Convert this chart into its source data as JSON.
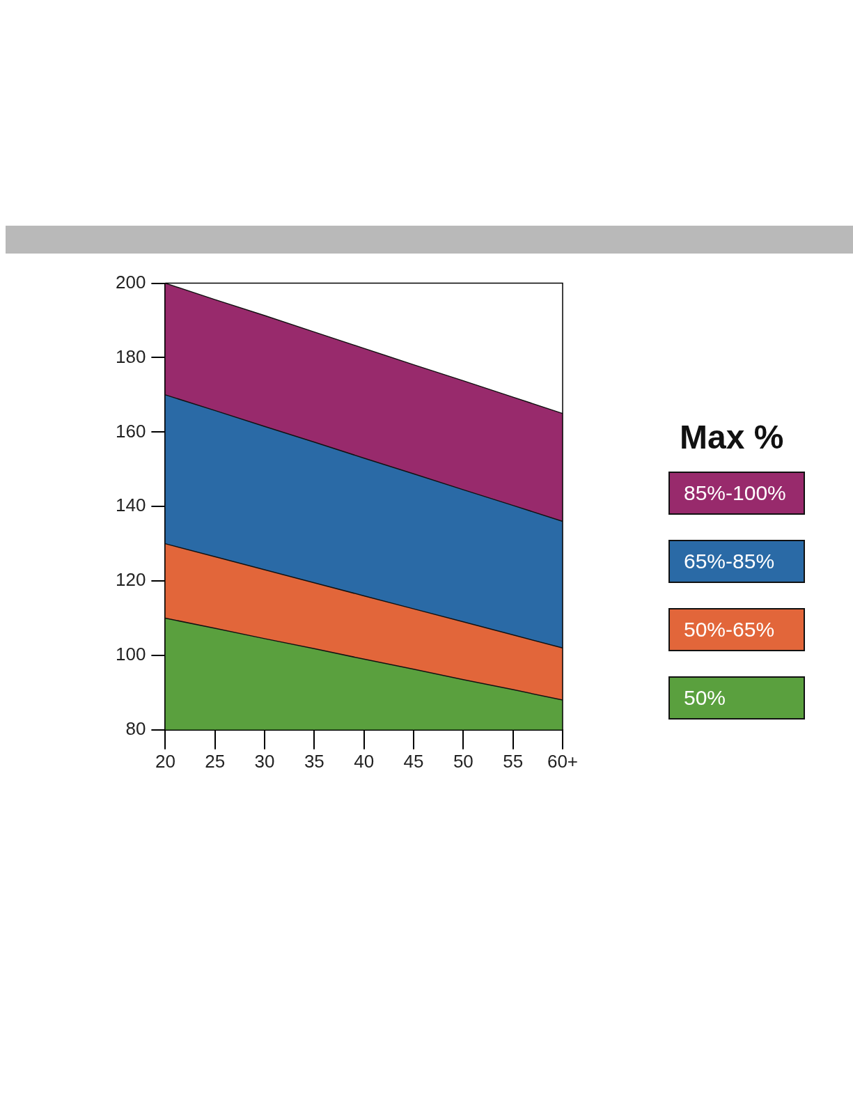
{
  "chart_data": {
    "type": "area",
    "legend_title": "Max %",
    "categories": [
      "20",
      "25",
      "30",
      "35",
      "40",
      "45",
      "50",
      "55",
      "60+"
    ],
    "series": [
      {
        "name": "50%",
        "color": "#5aa03e",
        "values": [
          110,
          107.3,
          104.5,
          101.8,
          99,
          96.3,
          93.5,
          90.8,
          88
        ]
      },
      {
        "name": "50%-65%",
        "color": "#e2663a",
        "values": [
          130,
          126.5,
          123,
          119.5,
          116,
          112.5,
          109,
          105.5,
          102
        ]
      },
      {
        "name": "65%-85%",
        "color": "#2a6aa6",
        "values": [
          170,
          165.8,
          161.5,
          157.3,
          153,
          148.8,
          144.5,
          140.3,
          136
        ]
      },
      {
        "name": "85%-100%",
        "color": "#982a6c",
        "values": [
          200,
          195.6,
          191.3,
          186.9,
          182.5,
          178.1,
          173.8,
          169.4,
          165
        ]
      }
    ],
    "ylim": [
      80,
      200
    ],
    "yticks": [
      80,
      100,
      120,
      140,
      160,
      180,
      200
    ],
    "grid": false,
    "legend": "right"
  }
}
